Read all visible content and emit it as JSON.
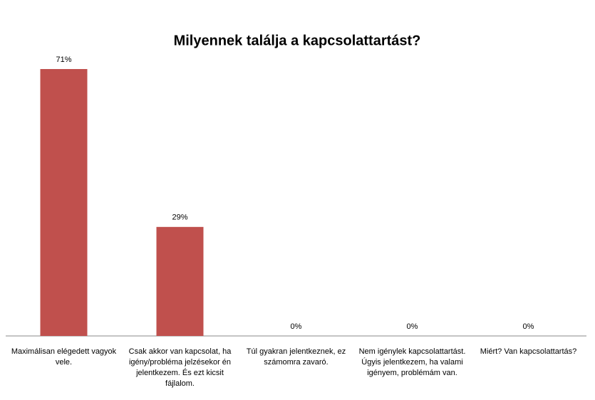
{
  "chart_data": {
    "type": "bar",
    "title": "Milyennek találja a kapcsolattartást?",
    "categories": [
      "Maximálisan elégedett vagyok vele.",
      "Csak akkor van kapcsolat, ha igény/probléma jelzésekor én jelentkezem. És ezt kicsit fájlalom.",
      "Túl gyakran jelentkeznek, ez számomra zavaró.",
      "Nem igénylek kapcsolattartást.  Úgyis jelentkezem, ha valami igényem, problémám van.",
      "Miért? Van kapcsolattartás?"
    ],
    "values": [
      71,
      29,
      0,
      0,
      0
    ],
    "value_labels": [
      "71%",
      "29%",
      "0%",
      "0%",
      "0%"
    ],
    "color": "#c0504d"
  }
}
